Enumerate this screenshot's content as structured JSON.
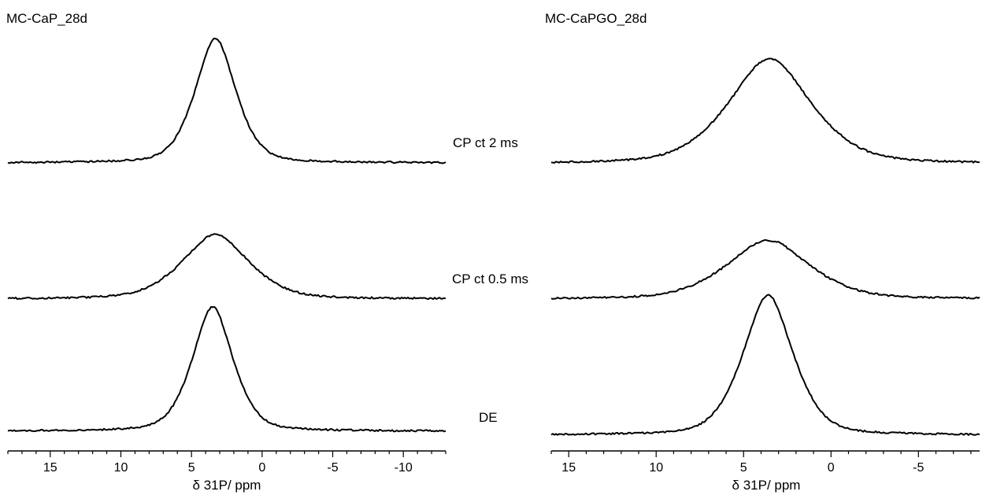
{
  "chart_data": {
    "type": "line",
    "trace_labels": [
      "CP ct 2 ms",
      "CP ct 0.5 ms",
      "DE"
    ],
    "panels": [
      {
        "title": "MC-CaP_28d",
        "xlabel": "δ 31P/ ppm",
        "xlim": [
          18,
          -13
        ],
        "xticks": [
          15,
          10,
          5,
          0,
          -5,
          -10
        ],
        "xtick_labels": [
          "15",
          "10",
          "5",
          "0",
          "-5",
          "-10"
        ],
        "series": [
          {
            "peak_ppm": 3.3,
            "relative_intensity": 1.0,
            "lineshape": "narrow"
          },
          {
            "peak_ppm": 3.3,
            "relative_intensity": 0.52,
            "lineshape": "broad"
          },
          {
            "peak_ppm": 3.5,
            "relative_intensity": 1.0,
            "lineshape": "narrow"
          }
        ]
      },
      {
        "title": "MC-CaPGO_28d",
        "xlabel": "δ 31P/ ppm",
        "xlim": [
          16,
          -8.5
        ],
        "xticks": [
          15,
          10,
          5,
          0,
          -5
        ],
        "xtick_labels": [
          "15",
          "10",
          "5",
          "0",
          "-5"
        ],
        "series": [
          {
            "peak_ppm": 3.5,
            "relative_intensity": 0.75,
            "lineshape": "broad"
          },
          {
            "peak_ppm": 3.6,
            "relative_intensity": 0.42,
            "lineshape": "broad"
          },
          {
            "peak_ppm": 3.6,
            "relative_intensity": 1.0,
            "lineshape": "narrow"
          }
        ]
      }
    ]
  }
}
